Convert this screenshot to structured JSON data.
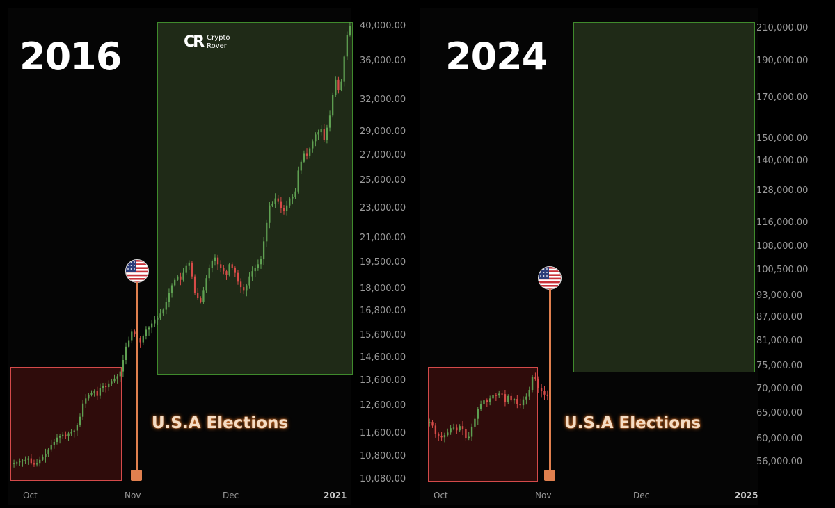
{
  "chart_data": [
    {
      "type": "candlestick",
      "title": "2016",
      "x_ticks": [
        "Oct",
        "Nov",
        "Dec",
        "2021"
      ],
      "y_ticks": [
        "40,000.00",
        "36,000.00",
        "32,000.00",
        "29,000.00",
        "27,000.00",
        "25,000.00",
        "23,000.00",
        "21,000.00",
        "19,500.00",
        "18,000.00",
        "16,800.00",
        "15,600.00",
        "14,600.00",
        "13,600.00",
        "12,600.00",
        "11,600.00",
        "10,800.00",
        "10,080.00"
      ],
      "y_scale": "log",
      "annotation": "U.S.A Elections",
      "close_series": [
        10600,
        10620,
        10650,
        10680,
        10700,
        10750,
        10600,
        10550,
        10600,
        10700,
        10800,
        10900,
        11050,
        11200,
        11300,
        11450,
        11500,
        11550,
        11500,
        11600,
        11650,
        11700,
        11900,
        12200,
        12700,
        12900,
        13050,
        13100,
        13200,
        13000,
        13300,
        13400,
        13350,
        13500,
        13600,
        13700,
        13800,
        14000,
        14500,
        15100,
        15400,
        15800,
        15700,
        15500,
        15300,
        15600,
        15900,
        16000,
        16200,
        16400,
        16500,
        16700,
        16900,
        17300,
        17800,
        18200,
        18500,
        18700,
        18500,
        18900,
        19300,
        19500,
        18700,
        17800,
        17500,
        17300,
        17900,
        18600,
        19200,
        19600,
        19800,
        19400,
        19200,
        19000,
        18800,
        19400,
        19200,
        18900,
        18400,
        18100,
        17900,
        18200,
        18700,
        19000,
        19200,
        19400,
        19700,
        20800,
        22000,
        23200,
        23300,
        23700,
        23500,
        23000,
        22800,
        23200,
        23700,
        23800,
        24200,
        25800,
        26500,
        27200,
        27000,
        27600,
        28200,
        28800,
        29000,
        29300,
        28300,
        29400,
        30500,
        32500,
        34000,
        33000,
        33800,
        36500,
        39000,
        40000
      ],
      "high": 40500,
      "low": 10350
    },
    {
      "type": "candlestick",
      "title": "2024",
      "x_ticks": [
        "Oct",
        "Nov",
        "Dec",
        "2025"
      ],
      "y_ticks": [
        "210,000.00",
        "190,000.00",
        "170,000.00",
        "150,000.00",
        "140,000.00",
        "128,000.00",
        "116,000.00",
        "108,000.00",
        "100,500.00",
        "93,000.00",
        "87,000.00",
        "81,000.00",
        "75,000.00",
        "70,000.00",
        "65,000.00",
        "60,000.00",
        "56,000.00"
      ],
      "y_scale": "log",
      "annotation": "U.S.A Elections",
      "close_series": [
        63300,
        62600,
        61000,
        60700,
        60400,
        60800,
        61300,
        62100,
        62200,
        61700,
        62500,
        61900,
        60300,
        60500,
        62400,
        63900,
        65900,
        66900,
        67600,
        67200,
        68000,
        68700,
        68600,
        69000,
        68900,
        67300,
        68500,
        67600,
        67900,
        66900,
        66600,
        67800,
        68400,
        69800,
        72600,
        72200,
        70100,
        69500,
        68800,
        68500
      ],
      "high": 73600,
      "low": 59000
    }
  ],
  "left": {
    "year_title": "2016",
    "event_label": "U.S.A Elections",
    "logo_text": "Crypto\nRover",
    "logo_line1": "Crypto",
    "logo_line2": "Rover",
    "logo_mark": "CR"
  },
  "right": {
    "year_title": "2024",
    "event_label": "U.S.A Elections"
  },
  "colors": {
    "up": "#5fa052",
    "down": "#d74b48",
    "green_box_fill": "#1f2a17",
    "green_box_border": "#3f8a2c",
    "red_box_fill": "#2f0c0b",
    "red_box_border": "#d44a4a",
    "pin": "#e0804f"
  },
  "icons": [
    "us-flag-icon",
    "crypto-rover-logo"
  ]
}
